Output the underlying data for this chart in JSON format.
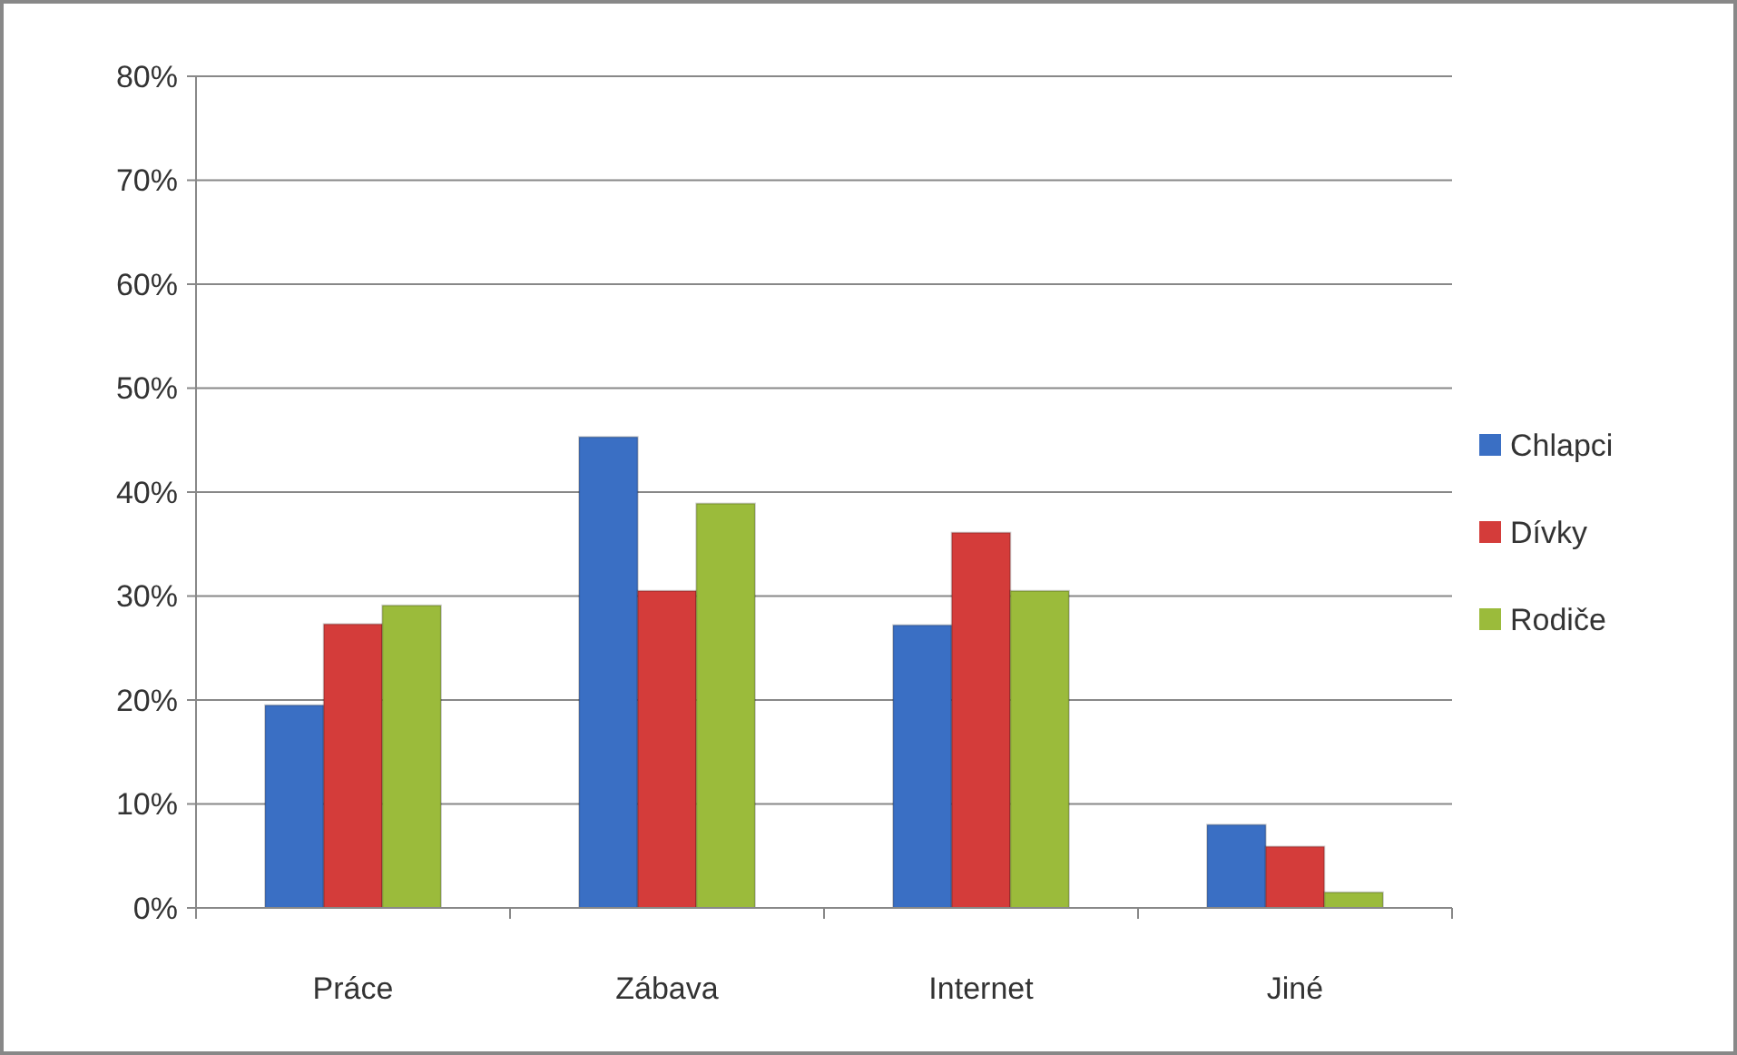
{
  "chart_data": {
    "type": "bar",
    "categories": [
      "Práce",
      "Zábava",
      "Internet",
      "Jiné"
    ],
    "series": [
      {
        "name": "Chlapci",
        "color": "#3a6fc4",
        "values": [
          19.5,
          45.3,
          27.2,
          8.0
        ]
      },
      {
        "name": "Dívky",
        "color": "#d43c3a",
        "values": [
          27.3,
          30.5,
          36.1,
          5.9
        ]
      },
      {
        "name": "Rodiče",
        "color": "#9bbb3b",
        "values": [
          29.1,
          38.9,
          30.5,
          1.5
        ]
      }
    ],
    "ylim": [
      0,
      80
    ],
    "yticks": [
      {
        "value": 0,
        "label": "0%"
      },
      {
        "value": 10,
        "label": "10%"
      },
      {
        "value": 20,
        "label": "20%"
      },
      {
        "value": 30,
        "label": "30%"
      },
      {
        "value": 40,
        "label": "40%"
      },
      {
        "value": 50,
        "label": "50%"
      },
      {
        "value": 60,
        "label": "60%"
      },
      {
        "value": 70,
        "label": "70%"
      },
      {
        "value": 80,
        "label": "80%"
      }
    ],
    "grid": "y",
    "legend": "right"
  }
}
